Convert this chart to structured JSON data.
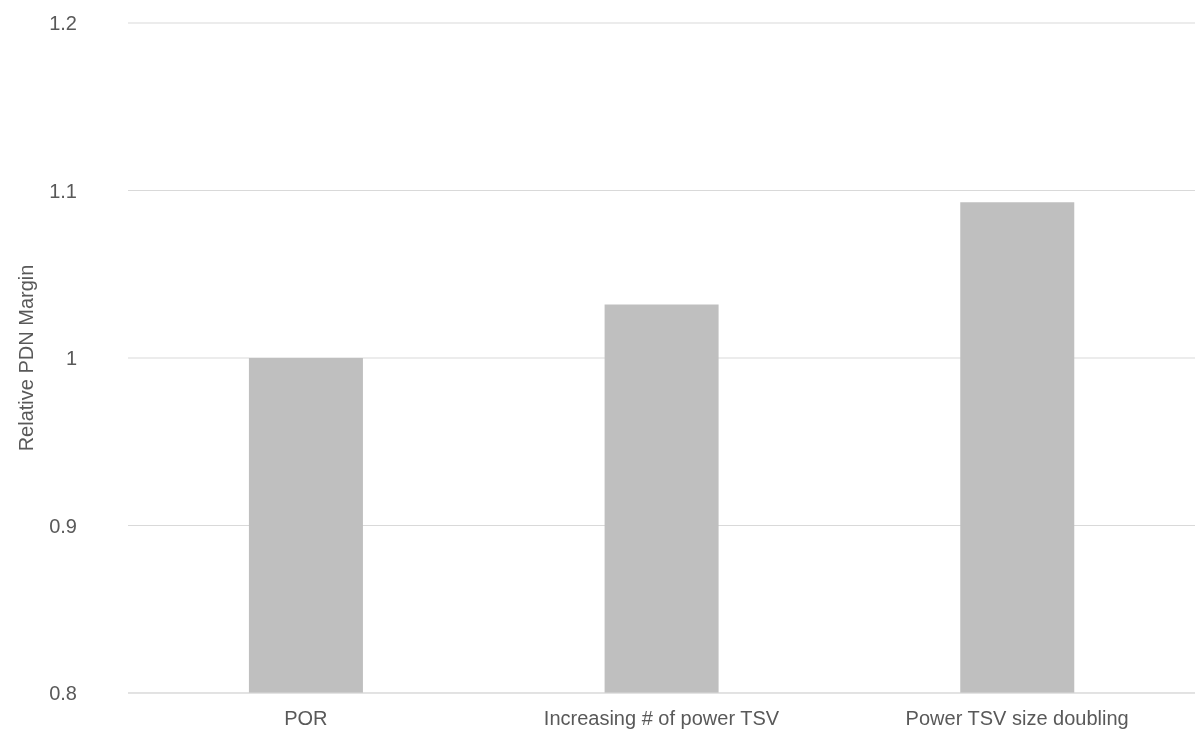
{
  "chart_data": {
    "type": "bar",
    "ylabel": "Relative PDN Margin",
    "categories": [
      "POR",
      "Increasing # of power TSV",
      "Power TSV size doubling"
    ],
    "values": [
      1.0,
      1.032,
      1.093
    ],
    "color": "#bfbfbf",
    "ylim": [
      0.8,
      1.2
    ],
    "yticks": [
      0.8,
      0.9,
      1,
      1.1,
      1.2
    ],
    "grid": "y"
  }
}
